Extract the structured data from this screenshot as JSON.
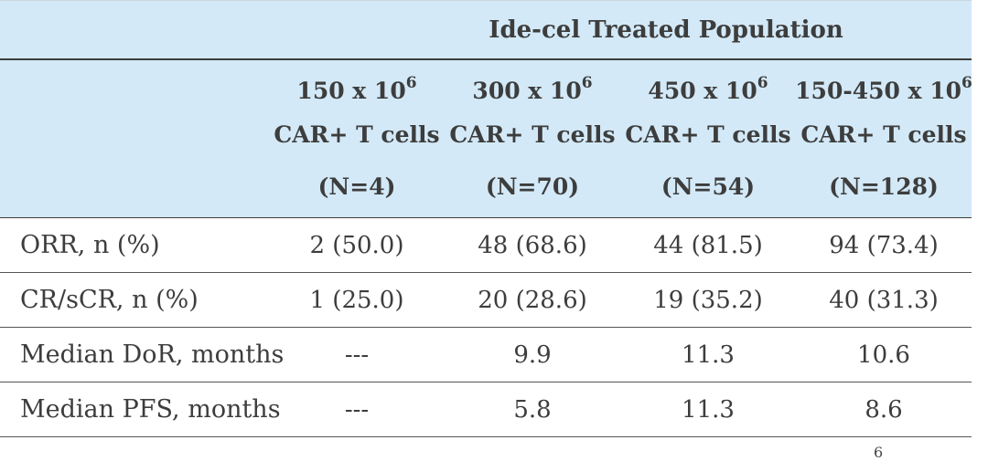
{
  "table": {
    "group_title": "Ide-cel Treated Population",
    "columns": [
      {
        "dose": "150 x 10",
        "exp": "6",
        "unit": "CAR+ T cells",
        "n": "(N=4)"
      },
      {
        "dose": "300 x 10",
        "exp": "6",
        "unit": "CAR+ T cells",
        "n": "(N=70)"
      },
      {
        "dose": "450 x 10",
        "exp": "6",
        "unit": "CAR+ T cells",
        "n": "(N=54)"
      },
      {
        "dose": "150-450 x 10",
        "exp": "6",
        "unit": "CAR+ T cells",
        "n": "(N=128)"
      }
    ],
    "rows": [
      {
        "label": "ORR, n (%)",
        "cells": [
          "2 (50.0)",
          "48 (68.6)",
          "44 (81.5)",
          "94 (73.4)"
        ]
      },
      {
        "label": "CR/sCR, n (%)",
        "cells": [
          "1 (25.0)",
          "20 (28.6)",
          "19 (35.2)",
          "40 (31.3)"
        ]
      },
      {
        "label": "Median DoR, months",
        "cells": [
          "---",
          "9.9",
          "11.3",
          "10.6"
        ]
      },
      {
        "label": "Median PFS, months",
        "cells": [
          "---",
          "5.8",
          "11.3",
          "8.6"
        ]
      }
    ]
  },
  "footer_mark": "6"
}
